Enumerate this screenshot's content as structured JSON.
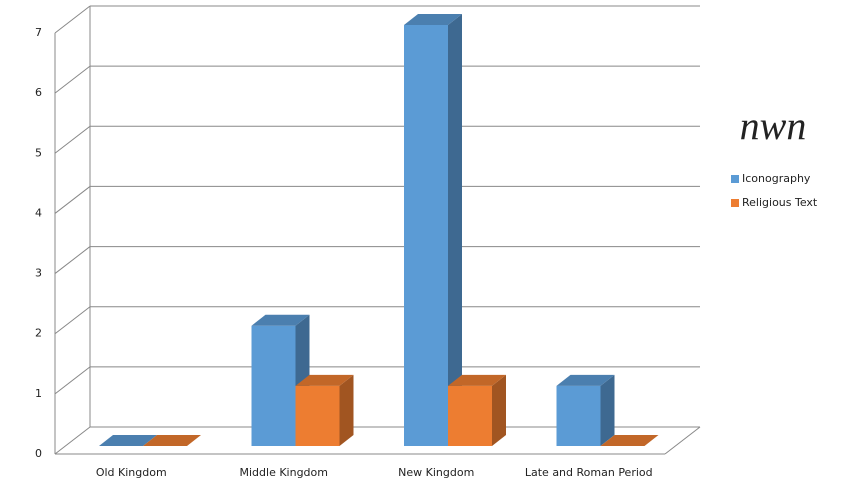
{
  "chart_data": {
    "type": "bar3d",
    "title": "nwn",
    "categories": [
      "Old Kingdom",
      "Middle Kingdom",
      "New Kingdom",
      "Late and Roman Period"
    ],
    "series": [
      {
        "name": "Iconography",
        "color": "#5b9bd5",
        "values": [
          0,
          2,
          7,
          1
        ]
      },
      {
        "name": "Religious Text",
        "color": "#ed7d31",
        "values": [
          0,
          1,
          1,
          0
        ]
      }
    ],
    "ylim": [
      0,
      7
    ],
    "yticks": [
      0,
      1,
      2,
      3,
      4,
      5,
      6,
      7
    ],
    "grid": true,
    "legend": "right"
  }
}
